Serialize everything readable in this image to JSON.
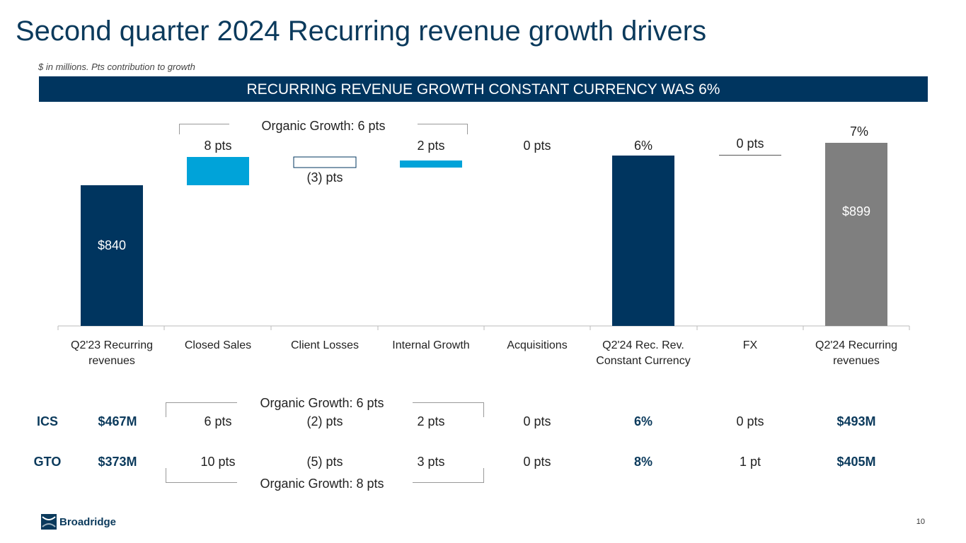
{
  "title": "Second quarter 2024 Recurring revenue growth drivers",
  "subtitle": "$ in millions. Pts contribution to growth",
  "banner": "RECURRING REVENUE GROWTH CONSTANT CURRENCY WAS 6%",
  "chart_data": {
    "type": "bar",
    "subtype": "waterfall",
    "categories": [
      "Q2'23 Recurring revenues",
      "Closed Sales",
      "Client Losses",
      "Internal Growth",
      "Acquisitions",
      "Q2'24 Rec. Rev. Constant Currency",
      "FX",
      "Q2'24 Recurring revenues"
    ],
    "values": [
      840,
      8,
      -3,
      2,
      0,
      6,
      0,
      899
    ],
    "units": [
      "$M",
      "pts",
      "pts",
      "pts",
      "pts",
      "%",
      "pts",
      "$M"
    ],
    "labels": [
      "$840",
      "8 pts",
      "(3) pts",
      "2 pts",
      "0 pts",
      "6%",
      "0 pts",
      "$899"
    ],
    "end_growth_label": "7%",
    "bracket_label": "Organic Growth: 6 pts",
    "colors": {
      "total": "#00355f",
      "positive": "#00a3d9",
      "negative_fill": "#ffffff",
      "negative_border": "#00355f",
      "final": "#7f7f7f"
    }
  },
  "table": {
    "rows": [
      {
        "segment": "ICS",
        "start": "$467M",
        "values": [
          "6 pts",
          "(2) pts",
          "2 pts",
          "0 pts",
          "6%",
          "0 pts",
          "$493M"
        ]
      },
      {
        "segment": "GTO",
        "start": "$373M",
        "values": [
          "10 pts",
          "(5) pts",
          "3 pts",
          "0 pts",
          "8%",
          "1 pt",
          "$405M"
        ]
      }
    ],
    "ics_bracket": "Organic Growth: 6 pts",
    "gto_bracket": "Organic Growth: 8 pts"
  },
  "footer": {
    "logo": "Broadridge",
    "page": "10"
  }
}
